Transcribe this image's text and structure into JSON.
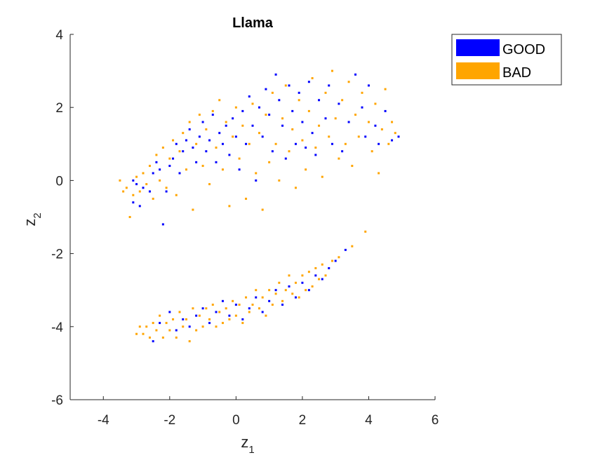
{
  "chart_data": {
    "type": "scatter",
    "title": "Llama",
    "xlabel": "z",
    "xlabel_sub": "1",
    "ylabel": "z",
    "ylabel_sub": "2",
    "xlim": [
      -5,
      6
    ],
    "ylim": [
      -6,
      4
    ],
    "xticks": [
      -4,
      -2,
      0,
      2,
      4,
      6
    ],
    "yticks": [
      -6,
      -4,
      -2,
      0,
      2,
      4
    ],
    "grid": false,
    "legend_position": "top-right, outside plot area",
    "series": [
      {
        "name": "GOOD",
        "color": "#0000ff",
        "points": [
          [
            -3.1,
            -0.6
          ],
          [
            -3.1,
            0.0
          ],
          [
            -3.0,
            -0.1
          ],
          [
            -2.9,
            -0.7
          ],
          [
            -2.8,
            -0.2
          ],
          [
            -2.6,
            -0.3
          ],
          [
            -2.5,
            0.2
          ],
          [
            -2.4,
            0.5
          ],
          [
            -2.3,
            0.3
          ],
          [
            -2.2,
            -1.2
          ],
          [
            -2.1,
            -0.3
          ],
          [
            -2.0,
            0.4
          ],
          [
            -1.9,
            0.6
          ],
          [
            -1.8,
            1.0
          ],
          [
            -1.7,
            0.2
          ],
          [
            -1.6,
            0.8
          ],
          [
            -1.5,
            1.1
          ],
          [
            -1.4,
            1.4
          ],
          [
            -1.3,
            0.9
          ],
          [
            -1.2,
            0.5
          ],
          [
            -1.1,
            1.2
          ],
          [
            -1.0,
            1.6
          ],
          [
            -0.9,
            0.8
          ],
          [
            -0.8,
            1.1
          ],
          [
            -0.7,
            1.8
          ],
          [
            -0.6,
            0.5
          ],
          [
            -0.5,
            1.3
          ],
          [
            -0.4,
            1.0
          ],
          [
            -0.3,
            1.5
          ],
          [
            -0.2,
            0.7
          ],
          [
            -0.1,
            1.7
          ],
          [
            0.0,
            1.2
          ],
          [
            0.1,
            0.3
          ],
          [
            0.2,
            1.9
          ],
          [
            0.3,
            1.0
          ],
          [
            0.4,
            2.3
          ],
          [
            0.5,
            1.5
          ],
          [
            0.6,
            0.0
          ],
          [
            0.7,
            2.0
          ],
          [
            0.8,
            1.2
          ],
          [
            0.9,
            2.5
          ],
          [
            1.0,
            1.8
          ],
          [
            1.1,
            0.8
          ],
          [
            1.2,
            2.9
          ],
          [
            1.3,
            2.2
          ],
          [
            1.4,
            1.5
          ],
          [
            1.5,
            0.6
          ],
          [
            1.6,
            2.6
          ],
          [
            1.7,
            1.9
          ],
          [
            1.8,
            1.0
          ],
          [
            1.9,
            2.4
          ],
          [
            2.0,
            1.6
          ],
          [
            2.1,
            0.9
          ],
          [
            2.2,
            2.7
          ],
          [
            2.3,
            1.3
          ],
          [
            2.4,
            0.7
          ],
          [
            2.5,
            2.2
          ],
          [
            2.7,
            1.7
          ],
          [
            2.8,
            2.6
          ],
          [
            2.9,
            1.0
          ],
          [
            3.1,
            2.1
          ],
          [
            3.2,
            0.8
          ],
          [
            3.4,
            1.6
          ],
          [
            3.6,
            2.9
          ],
          [
            3.8,
            2.0
          ],
          [
            3.9,
            1.2
          ],
          [
            4.0,
            2.6
          ],
          [
            4.2,
            1.5
          ],
          [
            4.3,
            1.0
          ],
          [
            4.5,
            1.9
          ],
          [
            4.7,
            1.1
          ],
          [
            4.9,
            1.2
          ],
          [
            -2.5,
            -4.4
          ],
          [
            -2.3,
            -3.9
          ],
          [
            -2.0,
            -3.6
          ],
          [
            -1.8,
            -4.1
          ],
          [
            -1.6,
            -3.8
          ],
          [
            -1.4,
            -4.0
          ],
          [
            -1.2,
            -3.7
          ],
          [
            -1.0,
            -3.5
          ],
          [
            -0.8,
            -3.9
          ],
          [
            -0.6,
            -3.6
          ],
          [
            -0.4,
            -3.3
          ],
          [
            -0.2,
            -3.7
          ],
          [
            0.0,
            -3.4
          ],
          [
            0.2,
            -3.8
          ],
          [
            0.4,
            -3.5
          ],
          [
            0.6,
            -3.2
          ],
          [
            0.8,
            -3.6
          ],
          [
            1.0,
            -3.3
          ],
          [
            1.2,
            -3.0
          ],
          [
            1.4,
            -3.4
          ],
          [
            1.6,
            -2.9
          ],
          [
            1.8,
            -3.2
          ],
          [
            2.0,
            -2.8
          ],
          [
            2.2,
            -3.0
          ],
          [
            2.4,
            -2.6
          ],
          [
            2.6,
            -2.7
          ],
          [
            2.8,
            -2.4
          ],
          [
            3.0,
            -2.2
          ],
          [
            3.3,
            -1.9
          ]
        ]
      },
      {
        "name": "BAD",
        "color": "#ffa500",
        "points": [
          [
            -3.5,
            0.0
          ],
          [
            -3.4,
            -0.3
          ],
          [
            -3.3,
            -0.2
          ],
          [
            -3.2,
            -1.0
          ],
          [
            -3.1,
            -0.4
          ],
          [
            -3.0,
            0.1
          ],
          [
            -2.9,
            -0.3
          ],
          [
            -2.8,
            0.2
          ],
          [
            -2.7,
            -0.1
          ],
          [
            -2.6,
            0.4
          ],
          [
            -2.5,
            -0.5
          ],
          [
            -2.4,
            0.7
          ],
          [
            -2.3,
            0.0
          ],
          [
            -2.2,
            0.9
          ],
          [
            -2.1,
            -0.2
          ],
          [
            -2.0,
            0.6
          ],
          [
            -1.9,
            1.1
          ],
          [
            -1.8,
            -0.4
          ],
          [
            -1.7,
            0.8
          ],
          [
            -1.6,
            1.3
          ],
          [
            -1.5,
            0.3
          ],
          [
            -1.4,
            1.6
          ],
          [
            -1.3,
            -0.8
          ],
          [
            -1.2,
            1.0
          ],
          [
            -1.1,
            1.8
          ],
          [
            -1.0,
            0.4
          ],
          [
            -0.9,
            1.4
          ],
          [
            -0.8,
            -0.1
          ],
          [
            -0.7,
            1.9
          ],
          [
            -0.6,
            0.9
          ],
          [
            -0.5,
            2.2
          ],
          [
            -0.4,
            0.3
          ],
          [
            -0.3,
            1.6
          ],
          [
            -0.2,
            -0.7
          ],
          [
            -0.1,
            1.2
          ],
          [
            0.0,
            2.0
          ],
          [
            0.1,
            0.6
          ],
          [
            0.2,
            1.5
          ],
          [
            0.3,
            -0.5
          ],
          [
            0.4,
            1.0
          ],
          [
            0.5,
            2.1
          ],
          [
            0.6,
            0.2
          ],
          [
            0.7,
            1.3
          ],
          [
            0.8,
            -0.8
          ],
          [
            0.9,
            1.8
          ],
          [
            1.0,
            0.5
          ],
          [
            1.1,
            2.4
          ],
          [
            1.2,
            1.0
          ],
          [
            1.3,
            0.0
          ],
          [
            1.4,
            1.7
          ],
          [
            1.5,
            2.6
          ],
          [
            1.6,
            0.8
          ],
          [
            1.7,
            1.4
          ],
          [
            1.8,
            -0.2
          ],
          [
            1.9,
            2.2
          ],
          [
            2.0,
            1.1
          ],
          [
            2.1,
            0.3
          ],
          [
            2.2,
            1.9
          ],
          [
            2.3,
            2.8
          ],
          [
            2.4,
            0.9
          ],
          [
            2.5,
            1.5
          ],
          [
            2.6,
            0.1
          ],
          [
            2.7,
            2.4
          ],
          [
            2.8,
            1.2
          ],
          [
            2.9,
            3.0
          ],
          [
            3.0,
            1.7
          ],
          [
            3.1,
            0.6
          ],
          [
            3.2,
            2.2
          ],
          [
            3.3,
            1.0
          ],
          [
            3.4,
            2.7
          ],
          [
            3.5,
            0.4
          ],
          [
            3.6,
            1.8
          ],
          [
            3.7,
            1.2
          ],
          [
            3.8,
            2.4
          ],
          [
            3.9,
            -1.4
          ],
          [
            4.0,
            1.6
          ],
          [
            4.1,
            0.8
          ],
          [
            4.2,
            2.1
          ],
          [
            4.3,
            0.2
          ],
          [
            4.4,
            1.4
          ],
          [
            4.5,
            2.5
          ],
          [
            4.6,
            1.0
          ],
          [
            4.7,
            1.6
          ],
          [
            4.8,
            1.3
          ],
          [
            -3.0,
            -4.2
          ],
          [
            -2.9,
            -4.0
          ],
          [
            -2.8,
            -4.2
          ],
          [
            -2.7,
            -4.0
          ],
          [
            -2.6,
            -4.3
          ],
          [
            -2.5,
            -3.9
          ],
          [
            -2.4,
            -4.1
          ],
          [
            -2.3,
            -3.7
          ],
          [
            -2.2,
            -4.3
          ],
          [
            -2.1,
            -3.9
          ],
          [
            -2.0,
            -4.1
          ],
          [
            -1.9,
            -3.8
          ],
          [
            -1.8,
            -4.3
          ],
          [
            -1.7,
            -3.6
          ],
          [
            -1.6,
            -4.0
          ],
          [
            -1.5,
            -3.8
          ],
          [
            -1.4,
            -4.4
          ],
          [
            -1.3,
            -3.5
          ],
          [
            -1.2,
            -4.1
          ],
          [
            -1.1,
            -3.7
          ],
          [
            -1.0,
            -4.0
          ],
          [
            -0.9,
            -3.5
          ],
          [
            -0.8,
            -3.8
          ],
          [
            -0.7,
            -3.4
          ],
          [
            -0.6,
            -4.0
          ],
          [
            -0.5,
            -3.6
          ],
          [
            -0.4,
            -3.9
          ],
          [
            -0.3,
            -3.5
          ],
          [
            -0.2,
            -3.8
          ],
          [
            -0.1,
            -3.3
          ],
          [
            0.0,
            -3.7
          ],
          [
            0.1,
            -3.4
          ],
          [
            0.2,
            -3.9
          ],
          [
            0.3,
            -3.2
          ],
          [
            0.4,
            -3.6
          ],
          [
            0.5,
            -3.4
          ],
          [
            0.6,
            -3.0
          ],
          [
            0.7,
            -3.5
          ],
          [
            0.8,
            -3.2
          ],
          [
            0.9,
            -3.7
          ],
          [
            1.0,
            -3.0
          ],
          [
            1.1,
            -3.4
          ],
          [
            1.2,
            -3.1
          ],
          [
            1.3,
            -2.8
          ],
          [
            1.4,
            -3.3
          ],
          [
            1.5,
            -3.0
          ],
          [
            1.6,
            -2.6
          ],
          [
            1.7,
            -3.1
          ],
          [
            1.8,
            -2.8
          ],
          [
            1.9,
            -3.2
          ],
          [
            2.0,
            -2.6
          ],
          [
            2.1,
            -3.0
          ],
          [
            2.2,
            -2.5
          ],
          [
            2.3,
            -2.9
          ],
          [
            2.4,
            -2.4
          ],
          [
            2.5,
            -2.7
          ],
          [
            2.6,
            -2.3
          ],
          [
            2.7,
            -2.6
          ],
          [
            2.9,
            -2.2
          ],
          [
            3.1,
            -2.1
          ],
          [
            3.5,
            -1.8
          ]
        ]
      }
    ]
  }
}
